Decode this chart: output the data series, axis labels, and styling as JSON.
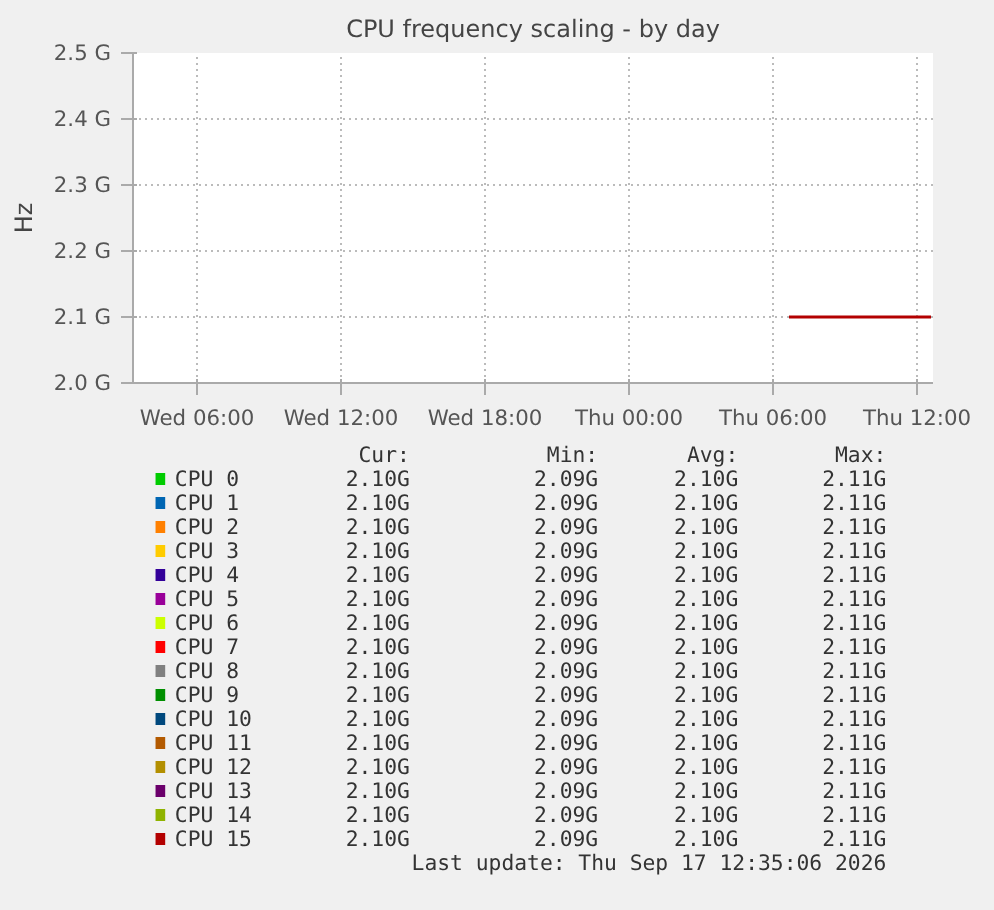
{
  "chart_data": {
    "type": "line",
    "title": "CPU frequency scaling - by day",
    "ylabel": "Hz",
    "xlim": [
      "2026-09-16T03:20",
      "2026-09-17T12:40"
    ],
    "ylim": [
      2.0,
      2.5
    ],
    "xticks": [
      {
        "value": "2026-09-16T06:00",
        "label": "Wed 06:00"
      },
      {
        "value": "2026-09-16T12:00",
        "label": "Wed 12:00"
      },
      {
        "value": "2026-09-16T18:00",
        "label": "Wed 18:00"
      },
      {
        "value": "2026-09-17T00:00",
        "label": "Thu 00:00"
      },
      {
        "value": "2026-09-17T06:00",
        "label": "Thu 06:00"
      },
      {
        "value": "2026-09-17T12:00",
        "label": "Thu 12:00"
      }
    ],
    "yticks": [
      {
        "value": 2.0,
        "label": "2.0 G"
      },
      {
        "value": 2.1,
        "label": "2.1 G"
      },
      {
        "value": 2.2,
        "label": "2.2 G"
      },
      {
        "value": 2.3,
        "label": "2.3 G"
      },
      {
        "value": 2.4,
        "label": "2.4 G"
      },
      {
        "value": 2.5,
        "label": "2.5 G"
      }
    ],
    "x": [
      "2026-09-17T06:40",
      "2026-09-17T08:00",
      "2026-09-17T09:30",
      "2026-09-17T11:00",
      "2026-09-17T12:35"
    ],
    "series": [
      {
        "name": "CPU 0",
        "color": "#00cc00",
        "values": [
          null,
          null,
          null,
          null,
          null
        ]
      },
      {
        "name": "CPU 1",
        "color": "#0066b3",
        "values": [
          null,
          null,
          null,
          null,
          null
        ]
      },
      {
        "name": "CPU 2",
        "color": "#ff8000",
        "values": [
          null,
          null,
          null,
          null,
          null
        ]
      },
      {
        "name": "CPU 3",
        "color": "#ffcc00",
        "values": [
          null,
          null,
          null,
          null,
          null
        ]
      },
      {
        "name": "CPU 4",
        "color": "#330099",
        "values": [
          null,
          null,
          null,
          null,
          null
        ]
      },
      {
        "name": "CPU 5",
        "color": "#990099",
        "values": [
          null,
          null,
          null,
          null,
          null
        ]
      },
      {
        "name": "CPU 6",
        "color": "#ccff00",
        "values": [
          null,
          null,
          null,
          null,
          null
        ]
      },
      {
        "name": "CPU 7",
        "color": "#ff0000",
        "values": [
          null,
          null,
          null,
          null,
          null
        ]
      },
      {
        "name": "CPU 8",
        "color": "#808080",
        "values": [
          null,
          null,
          null,
          null,
          null
        ]
      },
      {
        "name": "CPU 9",
        "color": "#008f00",
        "values": [
          null,
          null,
          null,
          null,
          null
        ]
      },
      {
        "name": "CPU 10",
        "color": "#00487d",
        "values": [
          null,
          null,
          null,
          null,
          null
        ]
      },
      {
        "name": "CPU 11",
        "color": "#b35a00",
        "values": [
          null,
          null,
          null,
          null,
          null
        ]
      },
      {
        "name": "CPU 12",
        "color": "#b38f00",
        "values": [
          null,
          null,
          null,
          null,
          null
        ]
      },
      {
        "name": "CPU 13",
        "color": "#6b006b",
        "values": [
          null,
          null,
          null,
          null,
          null
        ]
      },
      {
        "name": "CPU 14",
        "color": "#8fb300",
        "values": [
          null,
          null,
          null,
          null,
          null
        ]
      },
      {
        "name": "CPU 15",
        "color": "#b30000",
        "values": [
          2.1,
          2.1,
          2.1,
          2.1,
          2.1
        ]
      }
    ],
    "annotations": [
      "Cur: Min: Avg: Max:",
      "2.10G 2.09G 2.10G 2.11G",
      "2.10G 2.09G 2.10G 2.11G",
      "2.10G 2.09G 2.10G 2.11G",
      "2.10G 2.09G 2.10G 2.11G",
      "2.10G 2.09G 2.10G 2.11G",
      "2.10G 2.09G 2.10G 2.11G",
      "2.10G 2.09G 2.10G 2.11G",
      "2.10G 2.09G 2.10G 2.11G",
      "2.10G 2.09G 2.10G 2.11G",
      "2.10G 2.09G 2.10G 2.11G",
      "2.10G 2.09G 2.10G 2.11G",
      "2.10G 2.09G 2.10G 2.11G",
      "2.10G 2.09G 2.10G 2.11G",
      "2.10G 2.09G 2.10G 2.11G",
      "2.10G 2.09G 2.10G 2.11G",
      "2.10G 2.09G 2.10G 2.11G",
      "Last update: Thu Sep 17 12:35:06 2026"
    ],
    "grid": true,
    "legend": "bottom",
    "marker": "none",
    "line_style": "solid"
  }
}
